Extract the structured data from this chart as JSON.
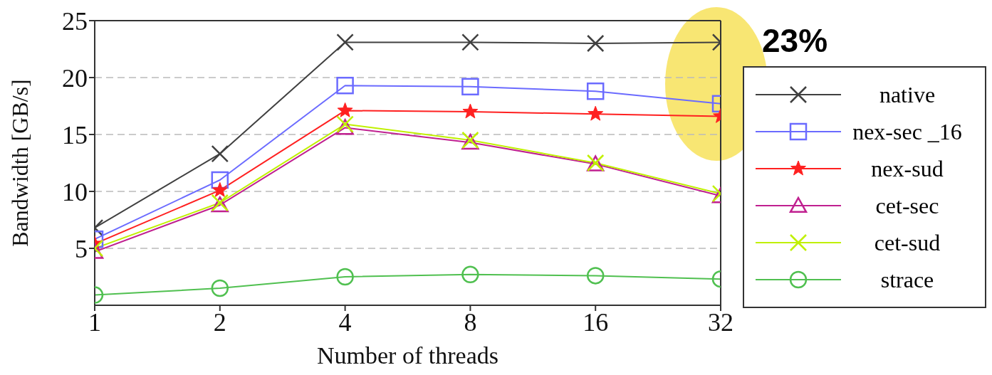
{
  "chart_data": {
    "type": "line",
    "xlabel": "Number of threads",
    "ylabel": "Bandwidth [GB/s]",
    "categories": [
      "1",
      "2",
      "4",
      "8",
      "16",
      "32"
    ],
    "series": [
      {
        "name": "native",
        "color": "#404040",
        "marker": "cross",
        "values": [
          6.8,
          13.3,
          23.1,
          23.1,
          23.0,
          23.1
        ]
      },
      {
        "name": "nex-sec _16",
        "color": "#6b6bff",
        "marker": "square",
        "values": [
          5.8,
          11.0,
          19.3,
          19.2,
          18.8,
          17.7
        ]
      },
      {
        "name": "nex-sud",
        "color": "#ff2020",
        "marker": "star",
        "values": [
          5.4,
          10.1,
          17.1,
          17.0,
          16.8,
          16.6
        ]
      },
      {
        "name": "cet-sec",
        "color": "#c02090",
        "marker": "triangle",
        "values": [
          4.7,
          8.8,
          15.6,
          14.3,
          12.4,
          9.6
        ]
      },
      {
        "name": "cet-sud",
        "color": "#c0f000",
        "marker": "cross",
        "values": [
          5.0,
          9.0,
          15.9,
          14.5,
          12.5,
          9.8
        ]
      },
      {
        "name": "strace",
        "color": "#50c050",
        "marker": "circle",
        "values": [
          0.9,
          1.5,
          2.5,
          2.7,
          2.6,
          2.3
        ]
      }
    ],
    "ylim": [
      0,
      25
    ],
    "yticks": [
      5,
      10,
      15,
      20,
      25
    ],
    "grid": "y",
    "legend": "right",
    "line_style": "solid",
    "annotations": [
      "23%"
    ]
  }
}
